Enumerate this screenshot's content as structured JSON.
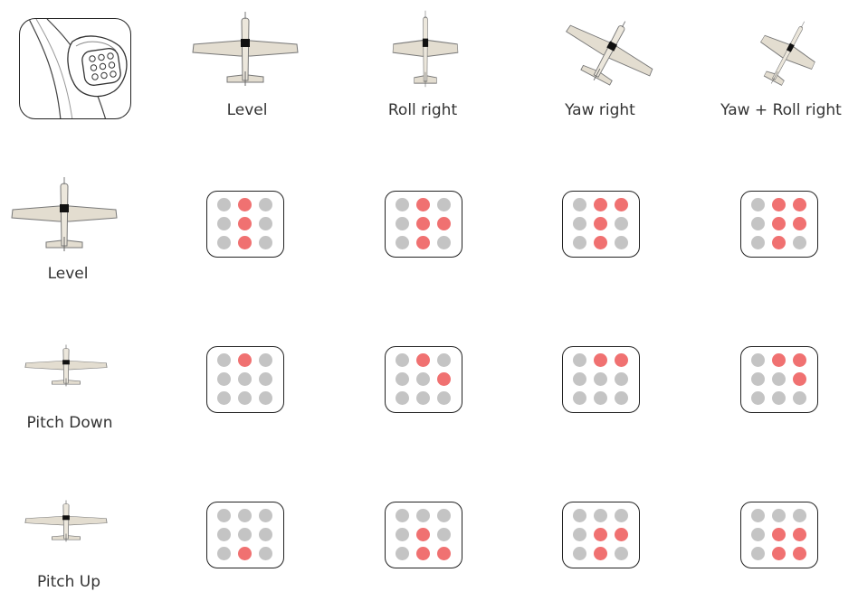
{
  "colors": {
    "on": "#f07171",
    "off": "#c4c4c4",
    "plane_fill": "#e3ddd0",
    "plane_stroke": "#777"
  },
  "columns": [
    "Level",
    "Roll right",
    "Yaw right",
    "Yaw + Roll right"
  ],
  "rows": [
    "Level",
    "Pitch Down",
    "Pitch Up"
  ],
  "grids": [
    [
      [
        0,
        1,
        0,
        0,
        1,
        0,
        0,
        1,
        0
      ],
      [
        0,
        1,
        0,
        0,
        1,
        1,
        0,
        1,
        0
      ],
      [
        0,
        1,
        1,
        0,
        1,
        0,
        0,
        1,
        0
      ],
      [
        0,
        1,
        1,
        0,
        1,
        1,
        0,
        1,
        0
      ]
    ],
    [
      [
        0,
        1,
        0,
        0,
        0,
        0,
        0,
        0,
        0
      ],
      [
        0,
        1,
        0,
        0,
        0,
        1,
        0,
        0,
        0
      ],
      [
        0,
        1,
        1,
        0,
        0,
        0,
        0,
        0,
        0
      ],
      [
        0,
        1,
        1,
        0,
        0,
        1,
        0,
        0,
        0
      ]
    ],
    [
      [
        0,
        0,
        0,
        0,
        0,
        0,
        0,
        1,
        0
      ],
      [
        0,
        0,
        0,
        0,
        1,
        0,
        0,
        1,
        1
      ],
      [
        0,
        0,
        0,
        0,
        1,
        1,
        0,
        1,
        0
      ],
      [
        0,
        0,
        0,
        0,
        1,
        1,
        0,
        1,
        1
      ]
    ]
  ]
}
